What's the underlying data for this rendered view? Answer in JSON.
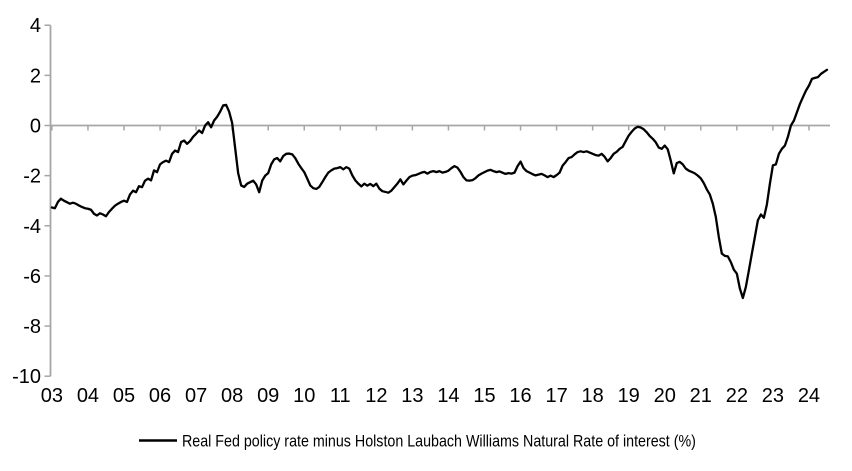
{
  "chart_data": {
    "type": "line",
    "title": "",
    "xlabel": "",
    "ylabel": "",
    "frequency": "monthly",
    "x_start_year": 2003,
    "x_end_label": "mid-2024",
    "ylim": [
      -10,
      4
    ],
    "grid": "zero-line-only",
    "legend_position": "bottom-center",
    "y_ticks": [
      4,
      2,
      0,
      -2,
      -4,
      -6,
      -8,
      -10
    ],
    "x_tick_labels": [
      "03",
      "04",
      "05",
      "06",
      "07",
      "08",
      "09",
      "10",
      "11",
      "12",
      "13",
      "14",
      "15",
      "16",
      "17",
      "18",
      "19",
      "20",
      "21",
      "22",
      "23",
      "24"
    ],
    "series": [
      {
        "name": "Real Fed policy rate minus Holston Laubach Williams Natural Rate of interest (%)",
        "color": "#000000",
        "values": [
          -3.27,
          -3.3,
          -3.05,
          -2.92,
          -3.0,
          -3.06,
          -3.12,
          -3.08,
          -3.12,
          -3.19,
          -3.25,
          -3.3,
          -3.32,
          -3.36,
          -3.52,
          -3.59,
          -3.5,
          -3.55,
          -3.62,
          -3.45,
          -3.32,
          -3.2,
          -3.12,
          -3.05,
          -3.0,
          -3.05,
          -2.75,
          -2.6,
          -2.66,
          -2.42,
          -2.46,
          -2.2,
          -2.12,
          -2.19,
          -1.79,
          -1.86,
          -1.55,
          -1.46,
          -1.4,
          -1.46,
          -1.13,
          -1.0,
          -1.06,
          -0.66,
          -0.6,
          -0.73,
          -0.62,
          -0.45,
          -0.33,
          -0.2,
          -0.3,
          0.0,
          0.13,
          -0.07,
          0.2,
          0.35,
          0.55,
          0.8,
          0.82,
          0.55,
          0.1,
          -0.9,
          -1.9,
          -2.39,
          -2.45,
          -2.32,
          -2.26,
          -2.2,
          -2.35,
          -2.66,
          -2.2,
          -2.0,
          -1.9,
          -1.55,
          -1.35,
          -1.3,
          -1.43,
          -1.22,
          -1.13,
          -1.12,
          -1.15,
          -1.3,
          -1.52,
          -1.7,
          -1.86,
          -2.12,
          -2.39,
          -2.5,
          -2.53,
          -2.45,
          -2.26,
          -2.06,
          -1.88,
          -1.79,
          -1.72,
          -1.7,
          -1.66,
          -1.75,
          -1.66,
          -1.72,
          -1.99,
          -2.19,
          -2.32,
          -2.43,
          -2.32,
          -2.4,
          -2.33,
          -2.42,
          -2.32,
          -2.52,
          -2.62,
          -2.65,
          -2.68,
          -2.6,
          -2.46,
          -2.32,
          -2.15,
          -2.35,
          -2.2,
          -2.06,
          -2.0,
          -1.98,
          -1.93,
          -1.88,
          -1.85,
          -1.92,
          -1.85,
          -1.82,
          -1.86,
          -1.82,
          -1.88,
          -1.85,
          -1.8,
          -1.7,
          -1.62,
          -1.68,
          -1.85,
          -2.06,
          -2.19,
          -2.2,
          -2.18,
          -2.1,
          -1.99,
          -1.92,
          -1.86,
          -1.8,
          -1.77,
          -1.82,
          -1.86,
          -1.83,
          -1.88,
          -1.93,
          -1.9,
          -1.92,
          -1.88,
          -1.62,
          -1.44,
          -1.7,
          -1.82,
          -1.88,
          -1.94,
          -1.99,
          -1.96,
          -1.93,
          -1.99,
          -2.06,
          -2.0,
          -2.06,
          -1.98,
          -1.88,
          -1.6,
          -1.46,
          -1.3,
          -1.26,
          -1.15,
          -1.06,
          -1.03,
          -1.06,
          -1.03,
          -1.08,
          -1.13,
          -1.18,
          -1.2,
          -1.13,
          -1.25,
          -1.43,
          -1.3,
          -1.13,
          -1.05,
          -0.93,
          -0.85,
          -0.62,
          -0.4,
          -0.25,
          -0.12,
          -0.05,
          -0.08,
          -0.15,
          -0.27,
          -0.42,
          -0.53,
          -0.67,
          -0.88,
          -0.93,
          -0.8,
          -0.95,
          -1.4,
          -1.91,
          -1.5,
          -1.45,
          -1.55,
          -1.72,
          -1.8,
          -1.85,
          -1.91,
          -2.0,
          -2.11,
          -2.3,
          -2.55,
          -2.75,
          -3.12,
          -3.65,
          -4.45,
          -5.11,
          -5.2,
          -5.22,
          -5.45,
          -5.75,
          -5.91,
          -6.5,
          -6.88,
          -6.44,
          -5.78,
          -5.11,
          -4.45,
          -3.78,
          -3.55,
          -3.68,
          -3.15,
          -2.32,
          -1.59,
          -1.55,
          -1.13,
          -0.93,
          -0.8,
          -0.45,
          0.0,
          0.2,
          0.53,
          0.86,
          1.13,
          1.39,
          1.59,
          1.86,
          1.9,
          1.93,
          2.06,
          2.14,
          2.22
        ]
      }
    ]
  },
  "legend": {
    "label": "Real Fed policy rate minus Holston Laubach Williams Natural Rate of interest (%)"
  },
  "colors": {
    "background": "#ffffff",
    "axis": "#a6a6a6",
    "line": "#000000",
    "text": "#000000"
  }
}
